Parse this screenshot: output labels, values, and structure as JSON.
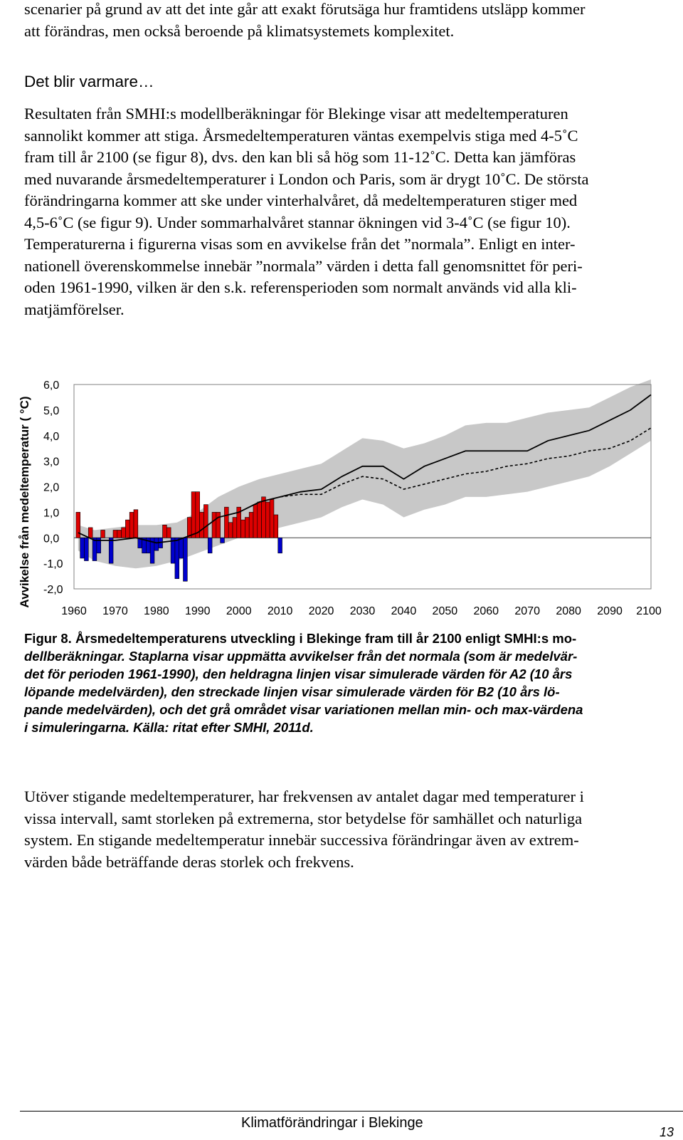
{
  "intro_lines": [
    "scenarier på grund av att det inte går att exakt förutsäga hur framtidens utsläpp kommer",
    "att förändras, men också beroende på klimatsystemets komplexitet."
  ],
  "section_heading": "Det blir varmare…",
  "main_lines": [
    "Resultaten från SMHI:s modellberäkningar för Blekinge visar att medeltemperaturen",
    "sannolikt kommer att stiga. Årsmedeltemperaturen väntas exempelvis stiga med 4-5˚C",
    "fram till år 2100 (se figur 8), dvs. den kan bli så hög som 11-12˚C. Detta kan jämföras",
    "med nuvarande årsmedeltemperaturer i London och Paris, som är drygt 10˚C. De största",
    "förändringarna kommer att ske under vinterhalvåret, då medeltemperaturen stiger med",
    "4,5-6˚C (se figur 9). Under sommarhalvåret stannar ökningen vid 3-4˚C (se figur 10).",
    "Temperaturerna i figurerna visas som en avvikelse från det ”normala”. Enligt en inter-",
    "nationell överenskommelse innebär ”normala” värden i detta fall genomsnittet för peri-",
    "oden 1961-1990, vilken är den s.k. referensperioden som normalt används vid alla kli-",
    "matjämförelser."
  ],
  "chart_data": {
    "type": "bar",
    "ylabel": "Avvikelse från medeltemperatur ( °C)",
    "ylim": [
      -2.0,
      6.0
    ],
    "yticks": [
      "6,0",
      "5,0",
      "4,0",
      "3,0",
      "2,0",
      "1,0",
      "0,0",
      "-1,0",
      "-2,0"
    ],
    "xticks": [
      "1960",
      "1970",
      "1980",
      "1990",
      "2000",
      "2010",
      "2020",
      "2030",
      "2040",
      "2050",
      "2060",
      "2070",
      "2080",
      "2090",
      "2100"
    ],
    "xlim": [
      1960,
      2100
    ],
    "bars": {
      "x": [
        1961,
        1962,
        1963,
        1964,
        1965,
        1966,
        1967,
        1968,
        1969,
        1970,
        1971,
        1972,
        1973,
        1974,
        1975,
        1976,
        1977,
        1978,
        1979,
        1980,
        1981,
        1982,
        1983,
        1984,
        1985,
        1986,
        1987,
        1988,
        1989,
        1990,
        1991,
        1992,
        1993,
        1994,
        1995,
        1996,
        1997,
        1998,
        1999,
        2000,
        2001,
        2002,
        2003,
        2004,
        2005,
        2006,
        2007,
        2008,
        2009,
        2010
      ],
      "values": [
        1.0,
        -0.8,
        -0.9,
        0.4,
        -0.9,
        -0.6,
        0.3,
        0.0,
        -1.0,
        0.3,
        0.3,
        0.4,
        0.7,
        1.0,
        1.1,
        -0.4,
        -0.6,
        -0.6,
        -1.0,
        -0.5,
        -0.4,
        0.5,
        0.4,
        -1.0,
        -1.6,
        -0.8,
        -1.7,
        0.8,
        1.8,
        1.8,
        1.0,
        1.3,
        -0.6,
        1.0,
        1.0,
        -0.2,
        1.2,
        0.6,
        0.8,
        1.2,
        0.7,
        0.8,
        1.0,
        1.3,
        1.4,
        1.6,
        1.4,
        1.5,
        0.9,
        -0.6
      ],
      "positive_color": "#dd0000",
      "negative_color": "#0000cc"
    },
    "series": [
      {
        "x": [
          1961,
          1965,
          1970,
          1975,
          1980,
          1985,
          1990,
          1995,
          2000,
          2005,
          2010,
          2015,
          2020,
          2025,
          2030,
          2035,
          2040,
          2045,
          2050,
          2055,
          2060,
          2065,
          2070,
          2075,
          2080,
          2085,
          2090,
          2095,
          2100
        ],
        "values": [
          0.2,
          -0.1,
          -0.1,
          0.0,
          -0.2,
          -0.1,
          0.2,
          0.8,
          1.0,
          1.4,
          1.6,
          1.8,
          1.9,
          2.4,
          2.8,
          2.8,
          2.3,
          2.8,
          3.1,
          3.4,
          3.4,
          3.4,
          3.4,
          3.8,
          4.0,
          4.2,
          4.6,
          5.0,
          5.6
        ],
        "style": "solid"
      },
      {
        "x": [
          2010,
          2015,
          2020,
          2025,
          2030,
          2035,
          2040,
          2045,
          2050,
          2055,
          2060,
          2065,
          2070,
          2075,
          2080,
          2085,
          2090,
          2095,
          2100
        ],
        "values": [
          1.6,
          1.7,
          1.7,
          2.1,
          2.4,
          2.3,
          1.9,
          2.1,
          2.3,
          2.5,
          2.6,
          2.8,
          2.9,
          3.1,
          3.2,
          3.4,
          3.5,
          3.8,
          4.3
        ],
        "style": "dashed"
      }
    ],
    "range_band": {
      "x": [
        1961,
        1965,
        1970,
        1975,
        1980,
        1985,
        1990,
        1995,
        2000,
        2005,
        2010,
        2015,
        2020,
        2025,
        2030,
        2035,
        2040,
        2045,
        2050,
        2055,
        2060,
        2065,
        2070,
        2075,
        2080,
        2085,
        2090,
        2095,
        2100
      ],
      "min": [
        -0.5,
        -0.9,
        -1.1,
        -1.2,
        -1.1,
        -0.9,
        -0.6,
        -0.3,
        0.0,
        0.2,
        0.4,
        0.6,
        0.8,
        1.2,
        1.5,
        1.3,
        0.8,
        1.1,
        1.3,
        1.6,
        1.6,
        1.7,
        1.8,
        2.0,
        2.2,
        2.4,
        2.8,
        3.3,
        3.8
      ],
      "max": [
        0.5,
        0.3,
        0.4,
        0.5,
        0.5,
        0.6,
        1.0,
        1.6,
        2.0,
        2.3,
        2.5,
        2.7,
        2.9,
        3.4,
        3.9,
        3.8,
        3.5,
        3.7,
        4.0,
        4.4,
        4.5,
        4.5,
        4.7,
        4.9,
        5.0,
        5.1,
        5.5,
        5.9,
        6.2
      ],
      "color": "#c8c8c8"
    }
  },
  "caption": {
    "lines": [
      {
        "text": "Figur 8. Årsmedeltemperaturens utveckling i Blekinge fram till år 2100 enligt SMHI:s mo-",
        "italic": false
      },
      {
        "text": "dellberäkningar. Staplarna visar uppmätta avvikelser från det normala (som är medelvär-",
        "italic": true
      },
      {
        "text": "det för perioden 1961-1990), den heldragna linjen visar simulerade värden för A2 (10 års",
        "italic": true
      },
      {
        "text": "löpande medelvärden), den streckade linjen visar simulerade värden för B2 (10 års lö-",
        "italic": true
      },
      {
        "text": "pande medelvärden), och det grå området visar variationen mellan min- och max-värdena",
        "italic": true
      },
      {
        "text": "i simuleringarna. Källa: ritat efter SMHI, 2011d.",
        "italic": true
      }
    ]
  },
  "outro_lines": [
    "Utöver stigande medeltemperaturer, har frekvensen av antalet dagar med temperaturer i",
    "vissa intervall, samt storleken på extremerna, stor betydelse för samhället och naturliga",
    "system. En stigande medeltemperatur innebär successiva förändringar även av extrem-",
    "värden både beträffande deras storlek och frekvens."
  ],
  "footer": {
    "title": "Klimatförändringar i Blekinge",
    "page_number": "13"
  }
}
